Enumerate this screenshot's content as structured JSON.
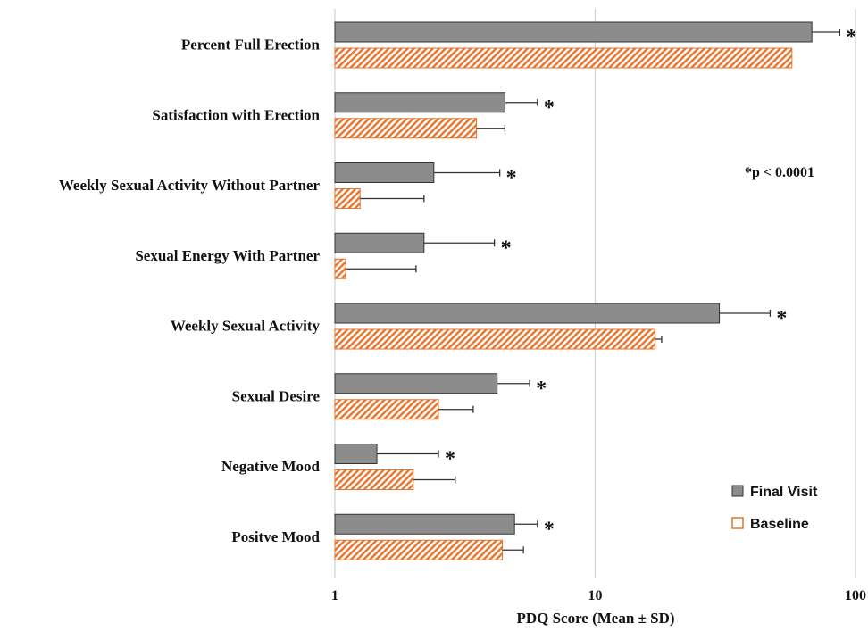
{
  "chart_data": {
    "type": "bar",
    "orientation": "horizontal",
    "x_scale": "log",
    "xlim": [
      1,
      100
    ],
    "xticks": [
      "1",
      "10",
      "100"
    ],
    "xlabel": "PDQ Score (Mean ± SD)",
    "grid": "vertical major gridlines",
    "categories": [
      "Percent Full Erection",
      "Satisfaction with Erection",
      "Weekly Sexual Activity Without Partner",
      "Sexual Energy With Partner",
      "Weekly Sexual Activity",
      "Sexual Desire",
      "Negative Mood",
      "Positve Mood"
    ],
    "series": [
      {
        "name": "Final Visit",
        "color": "#8c8c8c",
        "edge": "#333333",
        "pattern": "solid",
        "values": [
          68,
          4.5,
          2.4,
          2.2,
          30,
          4.2,
          1.45,
          4.9
        ],
        "error_upper": [
          87,
          6.0,
          4.3,
          4.1,
          47,
          5.6,
          2.5,
          6.0
        ]
      },
      {
        "name": "Baseline",
        "color": "#e8732a",
        "edge": "#e8732a",
        "pattern": "diagonal-hatch",
        "values": [
          57,
          3.5,
          1.25,
          1.1,
          17,
          2.5,
          2.0,
          4.4
        ],
        "error_upper": [
          57,
          4.5,
          2.2,
          2.05,
          18,
          3.4,
          2.9,
          5.3
        ]
      }
    ],
    "significance_marker": "*",
    "significance_note": "*p < 0.0001",
    "legend_position": "lower-right"
  }
}
